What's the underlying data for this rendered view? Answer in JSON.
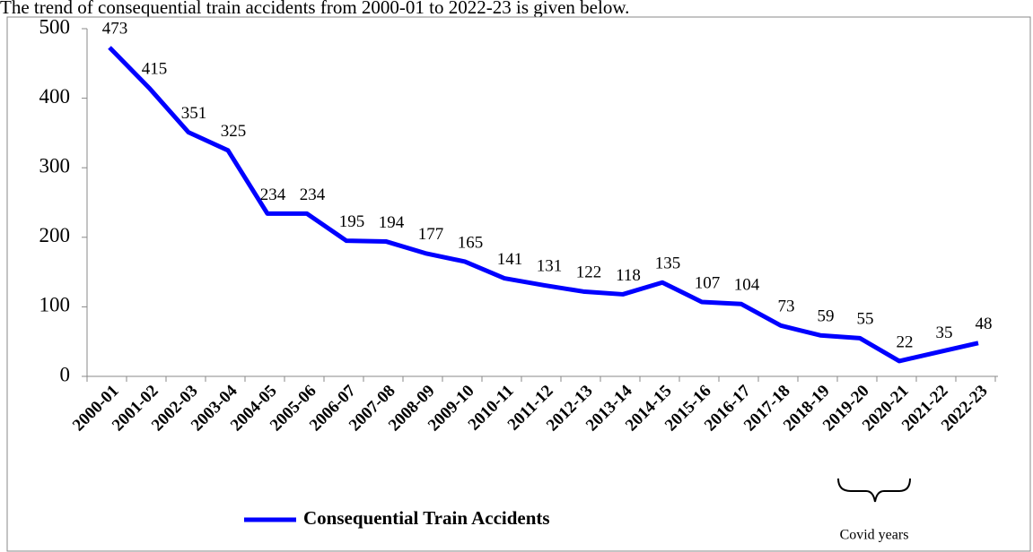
{
  "intro": "The trend of consequential train accidents from 2000-01 to 2022-23 is given below.",
  "chart_data": {
    "type": "line",
    "categories": [
      "2000-01",
      "2001-02",
      "2002-03",
      "2003-04",
      "2004-05",
      "2005-06",
      "2006-07",
      "2007-08",
      "2008-09",
      "2009-10",
      "2010-11",
      "2011-12",
      "2012-13",
      "2013-14",
      "2014-15",
      "2015-16",
      "2016-17",
      "2017-18",
      "2018-19",
      "2019-20",
      "2020-21",
      "2021-22",
      "2022-23"
    ],
    "series": [
      {
        "name": "Consequential Train Accidents",
        "color": "#0000ff",
        "values": [
          473,
          415,
          351,
          325,
          234,
          234,
          195,
          194,
          177,
          165,
          141,
          131,
          122,
          118,
          135,
          107,
          104,
          73,
          59,
          55,
          22,
          35,
          48
        ]
      }
    ],
    "ylim": [
      0,
      500
    ],
    "yticks": [
      0,
      100,
      200,
      300,
      400,
      500
    ],
    "grid": false,
    "legend": "bottom",
    "annotation": "Covid years"
  }
}
